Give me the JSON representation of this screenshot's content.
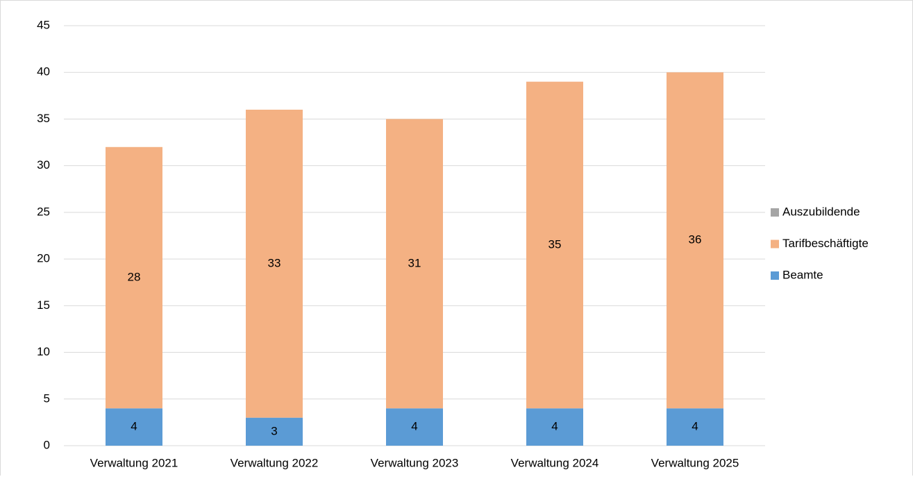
{
  "chart_data": {
    "type": "stacked_bar",
    "categories": [
      "Verwaltung 2021",
      "Verwaltung 2022",
      "Verwaltung 2023",
      "Verwaltung 2024",
      "Verwaltung 2025"
    ],
    "series": [
      {
        "name": "Beamte",
        "color": "#5b9bd5",
        "values": [
          4,
          3,
          4,
          4,
          4
        ]
      },
      {
        "name": "Tarifbeschäftigte",
        "color": "#f4b183",
        "values": [
          28,
          33,
          31,
          35,
          36
        ]
      },
      {
        "name": "Auszubildende",
        "color": "#a5a5a5",
        "values": [
          0,
          0,
          0,
          0,
          0
        ]
      }
    ],
    "ylim": [
      0,
      45
    ],
    "yticks": [
      0,
      5,
      10,
      15,
      20,
      25,
      30,
      35,
      40,
      45
    ],
    "grid": true,
    "legend": "right"
  }
}
